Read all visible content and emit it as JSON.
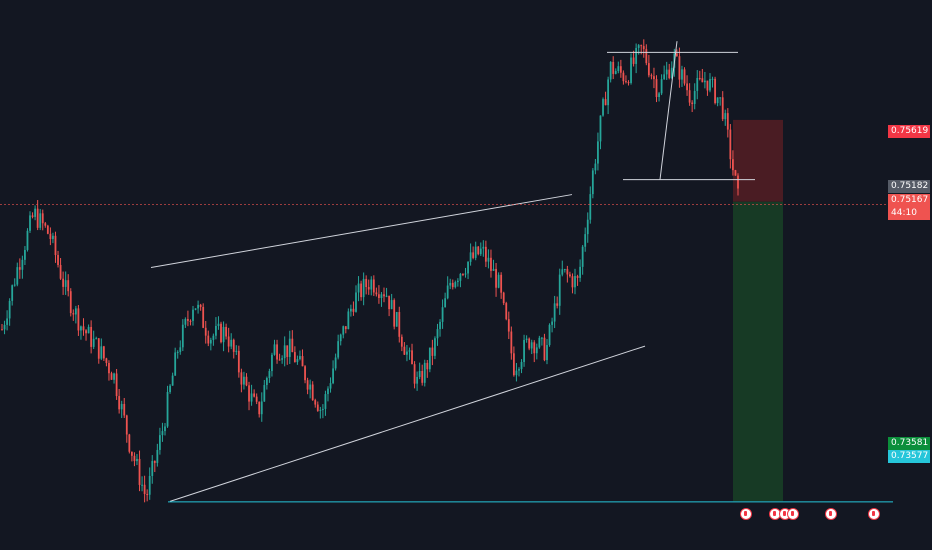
{
  "colors": {
    "background": "#131722",
    "up": "#26a69a",
    "down": "#ef5350",
    "lines": "#d1d4dc",
    "support": "#26c6da",
    "stop_zone": "#4a1c23",
    "target_zone": "#173a25"
  },
  "price_labels": {
    "stop": "0.75619",
    "prev_close": "0.75182",
    "last_price": "0.75167",
    "countdown": "44:10",
    "target": "0.73581",
    "support": "0.73577"
  },
  "events": [
    {
      "icon": "flag-icon"
    },
    {
      "icon": "flag-icon"
    },
    {
      "icon": "flag-icon"
    },
    {
      "icon": "flag-icon"
    },
    {
      "icon": "flag-icon"
    },
    {
      "icon": "flag-icon"
    }
  ],
  "chart_data": {
    "type": "candlestick",
    "ylim": [
      0.7332,
      0.7626
    ],
    "price_path": [
      [
        0.745,
        0.7484,
        0.7512,
        0.75,
        0.747,
        0.7451,
        0.744,
        0.7425,
        0.7388,
        0.736,
        0.7395,
        0.744,
        0.7465,
        0.7446,
        0.7449,
        0.7424,
        0.7405,
        0.744,
        0.7439,
        0.7425,
        0.7406,
        0.744,
        0.7466,
        0.7476,
        0.747,
        0.7445,
        0.742,
        0.744,
        0.7475,
        0.7485,
        0.7492,
        0.7475,
        0.743,
        0.7445,
        0.7438,
        0.748,
        0.7475,
        0.7538,
        0.759,
        0.7585,
        0.76,
        0.7578,
        0.7595,
        0.7575,
        0.7584,
        0.757,
        0.752
      ],
      [
        0.7468,
        0.7498,
        0.7508,
        0.7486,
        0.7459,
        0.7446,
        0.7432,
        0.7406,
        0.738,
        0.7372,
        0.7418,
        0.7452,
        0.7456,
        0.7444,
        0.7437,
        0.7414,
        0.7422,
        0.7442,
        0.7432,
        0.7415,
        0.7423,
        0.7453,
        0.7471,
        0.7474,
        0.7458,
        0.7432,
        0.743,
        0.7457,
        0.748,
        0.7488,
        0.7484,
        0.7452,
        0.7437,
        0.7441,
        0.7459,
        0.7478,
        0.7506,
        0.7564,
        0.7588,
        0.7592,
        0.7589,
        0.7587,
        0.7585,
        0.758,
        0.7577,
        0.7545,
        0.7518
      ]
    ],
    "drawings": {
      "channel_upper": [
        [
          0.7483,
          0.7522
        ]
      ],
      "channel_lower": [
        [
          0.7358,
          0.7441
        ]
      ],
      "range_top": 0.7598,
      "range_bottom": 0.753,
      "support": 0.73577,
      "stop": 0.75619,
      "entry": 0.75182,
      "target": 0.73581
    }
  }
}
